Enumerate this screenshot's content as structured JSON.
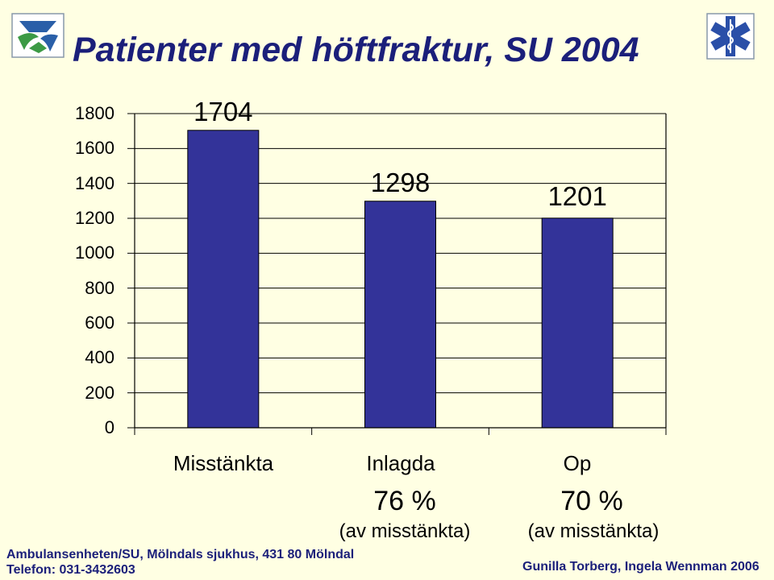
{
  "title": "Patienter med höftfraktur, SU 2004",
  "logos": {
    "left": "su-logo",
    "right": "star-of-life-icon"
  },
  "chart_data": {
    "type": "bar",
    "categories": [
      "Misstänkta",
      "Inlagda",
      "Op"
    ],
    "values": [
      1704,
      1298,
      1201
    ],
    "data_labels": [
      "1704",
      "1298",
      "1201"
    ],
    "ylim": [
      0,
      1800
    ],
    "yticks": [
      "0",
      "200",
      "400",
      "600",
      "800",
      "1000",
      "1200",
      "1400",
      "1600",
      "1800"
    ],
    "grid": true,
    "colors": {
      "bar": "#333399",
      "gridline": "#000000",
      "background": "#FFFFE3"
    }
  },
  "annotations": [
    {
      "percent": "76 %",
      "note": "(av misstänkta)"
    },
    {
      "percent": "70 %",
      "note": "(av misstänkta)"
    }
  ],
  "footer": {
    "line1": "Ambulansenheten/SU, Mölndals sjukhus, 431 80  Mölndal",
    "line2": "Telefon: 031-3432603",
    "authors": "Gunilla Torberg, Ingela Wennman 2006"
  }
}
